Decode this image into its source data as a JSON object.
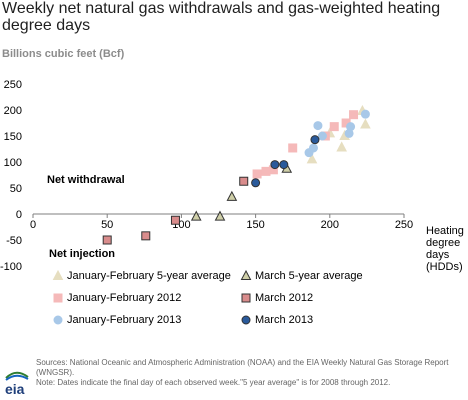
{
  "title": "Weekly net natural gas withdrawals and gas-weighted heating degree days",
  "unit_label": "Billions cubic feet (Bcf)",
  "x_axis_title": "Heating degree days (HDDs)",
  "annotations": {
    "withdrawal": "Net withdrawal",
    "injection": "Net injection"
  },
  "footnote": {
    "sources": "Sources: National Oceanic and Atmospheric Administration (NOAA) and the EIA Weekly Natural Gas Storage Report (WNGSR).",
    "note": "Note: Dates indicate the final day of each observed week.\"5 year average\" is for 2008 through 2012."
  },
  "logo_text": "eia",
  "chart_data": {
    "type": "scatter",
    "xlim": [
      0,
      250
    ],
    "ylim": [
      -100,
      250
    ],
    "x_ticks": [
      0,
      50,
      100,
      150,
      200,
      250
    ],
    "y_ticks": [
      -100,
      -50,
      0,
      50,
      100,
      150,
      200,
      250
    ],
    "grid": false,
    "legend": "bottom",
    "series": [
      {
        "name": "January-February 5-year average",
        "marker": "triangle",
        "color": "#e6dec0",
        "stroke": "#e6dec0",
        "points": [
          [
            188,
            105
          ],
          [
            200,
            155
          ],
          [
            208,
            128
          ],
          [
            210,
            150
          ],
          [
            222,
            198
          ],
          [
            224,
            172
          ]
        ]
      },
      {
        "name": "March 5-year average",
        "marker": "triangle",
        "color": "#cfcfa8",
        "stroke": "#333333",
        "points": [
          [
            110,
            -5
          ],
          [
            126,
            -5
          ],
          [
            134,
            33
          ],
          [
            171,
            87
          ]
        ]
      },
      {
        "name": "January-February 2012",
        "marker": "square",
        "color": "#f5b9b9",
        "stroke": "#f5b9b9",
        "points": [
          [
            151,
            77
          ],
          [
            157,
            82
          ],
          [
            162,
            85
          ],
          [
            175,
            127
          ],
          [
            197,
            150
          ],
          [
            203,
            168
          ],
          [
            211,
            175
          ],
          [
            216,
            191
          ]
        ]
      },
      {
        "name": "March 2012",
        "marker": "square",
        "color": "#d98c8c",
        "stroke": "#333333",
        "points": [
          [
            50,
            -50
          ],
          [
            76,
            -42
          ],
          [
            96,
            -12
          ],
          [
            142,
            63
          ]
        ]
      },
      {
        "name": "January-February 2013",
        "marker": "circle",
        "color": "#a8c8e8",
        "stroke": "#a8c8e8",
        "points": [
          [
            186,
            118
          ],
          [
            189,
            127
          ],
          [
            192,
            170
          ],
          [
            195,
            150
          ],
          [
            213,
            155
          ],
          [
            214,
            168
          ],
          [
            224,
            192
          ]
        ]
      },
      {
        "name": "March 2013",
        "marker": "circle",
        "color": "#2a5a9b",
        "stroke": "#333333",
        "points": [
          [
            150,
            60
          ],
          [
            163,
            95
          ],
          [
            169,
            95
          ],
          [
            190,
            143
          ]
        ]
      }
    ]
  }
}
